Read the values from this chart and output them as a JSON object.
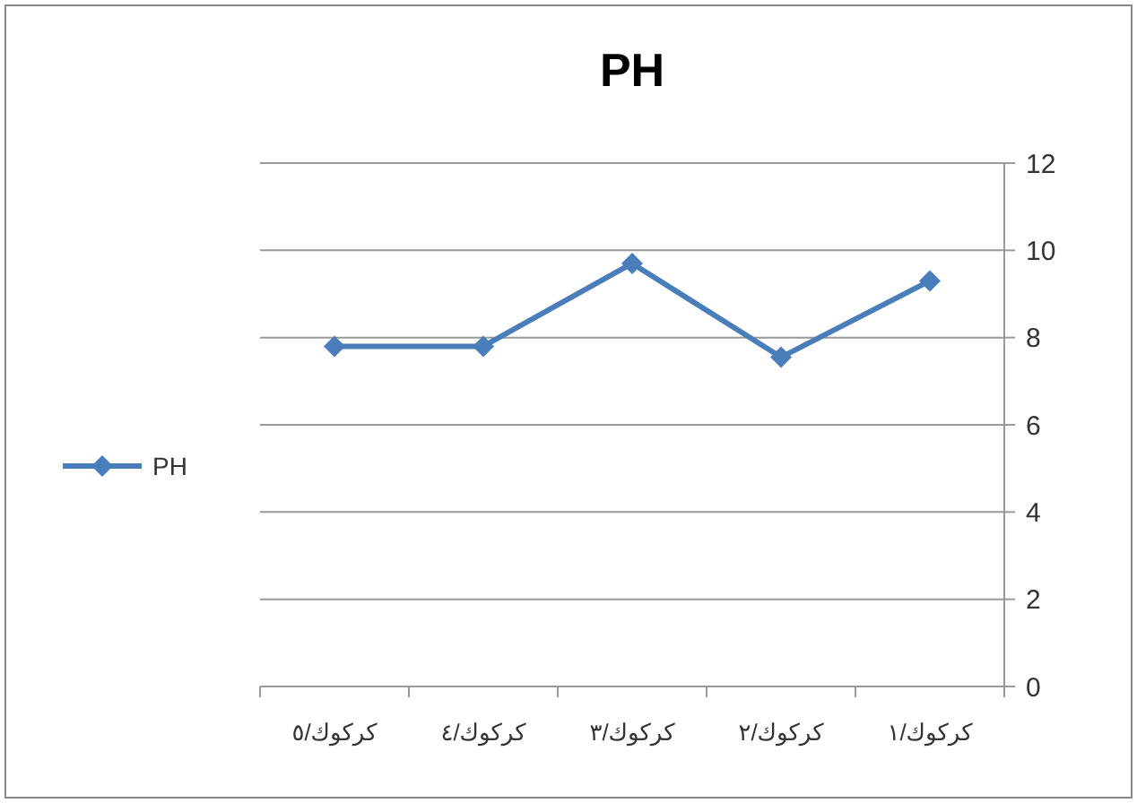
{
  "chart_data": {
    "type": "line",
    "title": "PH",
    "categories": [
      "كركوك/٥",
      "كركوك/٤",
      "كركوك/٣",
      "كركوك/٢",
      "كركوك/١"
    ],
    "series": [
      {
        "name": "PH",
        "color": "#4a7ebb",
        "values": [
          7.8,
          7.8,
          9.7,
          7.55,
          9.3
        ]
      }
    ],
    "ylim": [
      0,
      12
    ],
    "yticks": [
      0,
      2,
      4,
      6,
      8,
      10,
      12
    ],
    "grid": "y",
    "legend": "left",
    "marker": "diamond",
    "line_style": "solid"
  }
}
